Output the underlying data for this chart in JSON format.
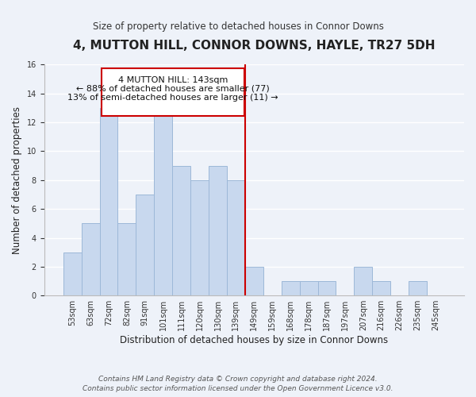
{
  "title": "4, MUTTON HILL, CONNOR DOWNS, HAYLE, TR27 5DH",
  "subtitle": "Size of property relative to detached houses in Connor Downs",
  "xlabel": "Distribution of detached houses by size in Connor Downs",
  "ylabel": "Number of detached properties",
  "footnote1": "Contains HM Land Registry data © Crown copyright and database right 2024.",
  "footnote2": "Contains public sector information licensed under the Open Government Licence v3.0.",
  "bin_labels": [
    "53sqm",
    "63sqm",
    "72sqm",
    "82sqm",
    "91sqm",
    "101sqm",
    "111sqm",
    "120sqm",
    "130sqm",
    "139sqm",
    "149sqm",
    "159sqm",
    "168sqm",
    "178sqm",
    "187sqm",
    "197sqm",
    "207sqm",
    "216sqm",
    "226sqm",
    "235sqm",
    "245sqm"
  ],
  "bin_counts": [
    3,
    5,
    13,
    5,
    7,
    13,
    9,
    8,
    9,
    8,
    2,
    0,
    1,
    1,
    1,
    0,
    2,
    1,
    0,
    1,
    0
  ],
  "bar_color": "#c8d8ee",
  "bar_edge_color": "#9db8d8",
  "vline_x_index": 9.5,
  "vline_color": "#cc0000",
  "annotation_text_line1": "4 MUTTON HILL: 143sqm",
  "annotation_text_line2": "← 88% of detached houses are smaller (77)",
  "annotation_text_line3": "13% of semi-detached houses are larger (11) →",
  "annotation_box_color": "#ffffff",
  "annotation_box_edge": "#cc0000",
  "ylim": [
    0,
    16
  ],
  "yticks": [
    0,
    2,
    4,
    6,
    8,
    10,
    12,
    14,
    16
  ],
  "bg_color": "#eef2f9",
  "plot_bg_color": "#eef2f9",
  "grid_color": "#ffffff",
  "title_fontsize": 11,
  "subtitle_fontsize": 8.5,
  "axis_label_fontsize": 8.5,
  "tick_fontsize": 7,
  "annotation_fontsize": 8,
  "footnote_fontsize": 6.5
}
